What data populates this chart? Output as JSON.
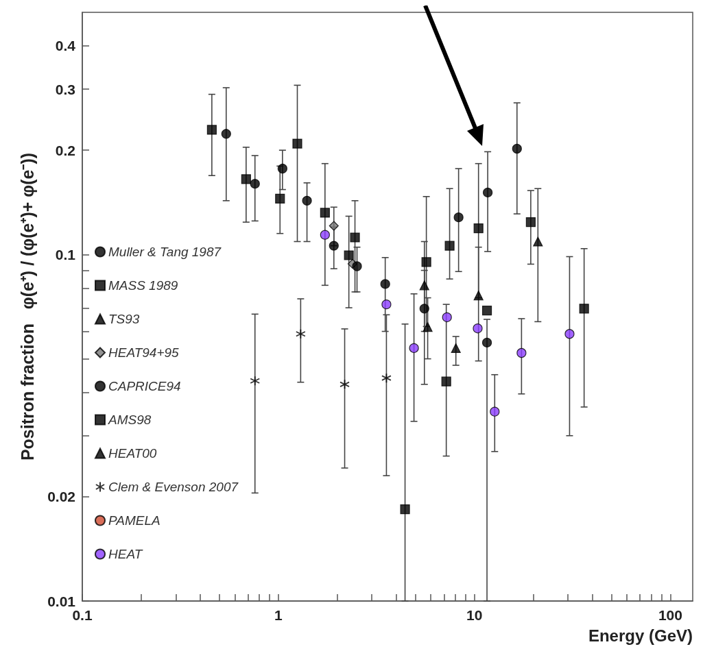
{
  "chart_data": {
    "type": "scatter",
    "xlabel": "Energy (GeV)",
    "ylabel": "Positron fraction   φ(e⁺) / (φ(e⁺)+ φ(e⁻))",
    "log": "xy",
    "xlim": [
      0.1,
      130
    ],
    "ylim": [
      0.01,
      0.5
    ],
    "xticks": [
      0.1,
      {
        "value": 0.2,
        "label": null
      },
      {
        "value": 0.3,
        "label": null
      },
      {
        "value": 0.4,
        "label": null
      },
      {
        "value": 0.5,
        "label": null
      },
      {
        "value": 0.6,
        "label": null
      },
      {
        "value": 0.7,
        "label": null
      },
      {
        "value": 0.8,
        "label": null
      },
      {
        "value": 0.9,
        "label": null
      },
      1,
      {
        "value": 2,
        "label": null
      },
      {
        "value": 3,
        "label": null
      },
      {
        "value": 4,
        "label": null
      },
      {
        "value": 5,
        "label": null
      },
      {
        "value": 6,
        "label": null
      },
      {
        "value": 7,
        "label": null
      },
      {
        "value": 8,
        "label": null
      },
      {
        "value": 9,
        "label": null
      },
      10,
      {
        "value": 20,
        "label": null
      },
      {
        "value": 30,
        "label": null
      },
      {
        "value": 40,
        "label": null
      },
      {
        "value": 50,
        "label": null
      },
      {
        "value": 60,
        "label": null
      },
      {
        "value": 70,
        "label": null
      },
      {
        "value": 80,
        "label": null
      },
      {
        "value": 90,
        "label": null
      },
      100
    ],
    "yticks": [
      0.01,
      0.02,
      {
        "value": 0.03,
        "label": null
      },
      {
        "value": 0.04,
        "label": null
      },
      {
        "value": 0.05,
        "label": null
      },
      {
        "value": 0.06,
        "label": null
      },
      {
        "value": 0.07,
        "label": null
      },
      {
        "value": 0.08,
        "label": null
      },
      {
        "value": 0.09,
        "label": null
      },
      0.1,
      0.2,
      0.3,
      0.4
    ],
    "legend": "left",
    "series": [
      {
        "name": "Muller & Tang 1987",
        "color": "#000000",
        "marker": "circle",
        "x": [
          11.7,
          16.5
        ],
        "values": [
          0.151,
          0.202
        ],
        "errors": [
          [
            0.102,
            0.198
          ],
          [
            0.131,
            0.274
          ]
        ]
      },
      {
        "name": "MASS 1989",
        "color": "#000000",
        "marker": "square",
        "x": [
          4.43,
          5.69,
          7.48,
          10.5
        ],
        "values": [
          0.0184,
          0.0951,
          0.106,
          0.119
        ],
        "errors": [
          [
            0.01,
            0.063
          ],
          [
            0.062,
            0.147
          ],
          [
            0.085,
            0.155
          ],
          [
            0.075,
            0.183
          ]
        ]
      },
      {
        "name": "TS93",
        "color": "#000000",
        "marker": "triangle",
        "x": [
          5.56,
          10.5,
          21.1
        ],
        "values": [
          0.0815,
          0.0762,
          0.109
        ],
        "errors": [
          [
            0.06,
            0.109
          ],
          [
            0.0493,
            0.105
          ],
          [
            0.064,
            0.155
          ]
        ]
      },
      {
        "name": "HEAT94+95",
        "color": "#777777",
        "marker": "diamond",
        "x": [
          1.92,
          2.39
        ],
        "values": [
          0.121,
          0.094
        ],
        "errors": [
          [
            0.106,
            0.137
          ],
          null
        ]
      },
      {
        "name": "CAPRICE94",
        "color": "#000000",
        "marker": "circle",
        "x": [
          0.542,
          0.76,
          1.05,
          1.4,
          1.92,
          2.52,
          3.51,
          5.56,
          8.31,
          11.6
        ],
        "values": [
          0.223,
          0.16,
          0.177,
          0.143,
          0.106,
          0.0925,
          0.0822,
          0.0698,
          0.128,
          0.0557
        ],
        "errors": [
          [
            0.143,
            0.303
          ],
          [
            0.125,
            0.193
          ],
          [
            0.154,
            0.2
          ],
          [
            0.109,
            0.161
          ],
          [
            0.091,
            0.12
          ],
          [
            0.078,
            0.105
          ],
          [
            0.06,
            0.098
          ],
          [
            0.0422,
            0.09
          ],
          [
            0.0893,
            0.177
          ],
          [
            0.01,
            0.065
          ]
        ]
      },
      {
        "name": "AMS98",
        "color": "#000000",
        "marker": "square",
        "x": [
          0.458,
          0.685,
          1.02,
          1.25,
          1.73,
          2.29,
          2.46,
          7.19,
          11.6,
          19.4,
          36.3
        ],
        "values": [
          0.229,
          0.165,
          0.145,
          0.209,
          0.132,
          0.0995,
          0.112,
          0.043,
          0.0689,
          0.124,
          0.0698
        ],
        "errors": [
          [
            0.169,
            0.29
          ],
          [
            0.124,
            0.204
          ],
          [
            0.115,
            0.18
          ],
          [
            0.109,
            0.308
          ],
          [
            0.0815,
            0.183
          ],
          [
            0.0702,
            0.129
          ],
          [
            0.078,
            0.143
          ],
          [
            0.0262,
            0.0718
          ],
          null,
          [
            0.0938,
            0.153
          ],
          [
            0.0363,
            0.104
          ]
        ]
      },
      {
        "name": "HEAT00",
        "color": "#000000",
        "marker": "triangle",
        "x": [
          5.78,
          8.05
        ],
        "values": [
          0.0618,
          0.0537
        ],
        "errors": [
          [
            0.05,
            0.075
          ],
          [
            0.0479,
            0.058
          ]
        ]
      },
      {
        "name": "Clem & Evenson 2007",
        "color": "#000000",
        "marker": "cross",
        "x": [
          0.76,
          1.3,
          2.18,
          3.56
        ],
        "values": [
          0.0432,
          0.059,
          0.0422,
          0.044
        ],
        "errors": [
          [
            0.0205,
            0.0673
          ],
          [
            0.0428,
            0.0745
          ],
          [
            0.0242,
            0.061
          ],
          [
            0.023,
            0.067
          ]
        ]
      },
      {
        "name": "PAMELA",
        "color": "#d04a30",
        "marker": "circle"
      },
      {
        "name": "HEAT",
        "color": "#8b3dff",
        "marker": "circle",
        "x": [
          1.73,
          3.56,
          4.92,
          7.25,
          10.4,
          12.7,
          17.4,
          30.6
        ],
        "values": [
          0.114,
          0.0718,
          0.0537,
          0.0659,
          0.0612,
          0.0352,
          0.052,
          0.059
        ],
        "errors": [
          null,
          null,
          [
            0.033,
            0.077
          ],
          null,
          null,
          [
            0.027,
            0.045
          ],
          [
            0.0396,
            0.0653
          ],
          [
            0.03,
            0.0986
          ]
        ]
      }
    ]
  }
}
